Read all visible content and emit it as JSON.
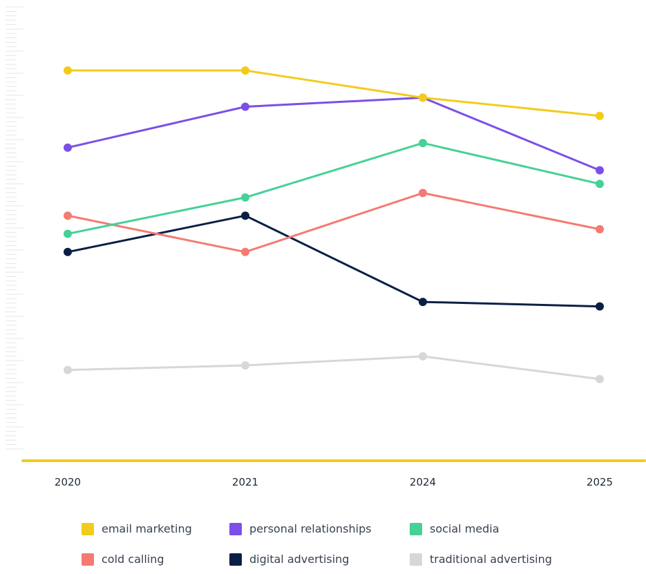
{
  "chart_data": {
    "type": "line",
    "title": "",
    "xlabel": "",
    "ylabel": "",
    "categories": [
      "2020",
      "2021",
      "2024",
      "2025"
    ],
    "ylim": [
      0,
      100
    ],
    "grid": false,
    "legend_position": "bottom",
    "series": [
      {
        "name": "email marketing",
        "color": "#f2cc1c",
        "values": [
          86,
          86,
          80,
          76
        ]
      },
      {
        "name": "personal relationships",
        "color": "#7b4fe8",
        "values": [
          69,
          78,
          80,
          64
        ]
      },
      {
        "name": "social media",
        "color": "#45d197",
        "values": [
          50,
          58,
          70,
          61
        ]
      },
      {
        "name": "cold calling",
        "color": "#f47a72",
        "values": [
          54,
          46,
          59,
          51
        ]
      },
      {
        "name": "digital advertising",
        "color": "#0b1f45",
        "values": [
          46,
          54,
          35,
          34
        ]
      },
      {
        "name": "traditional advertising",
        "color": "#d5d7da",
        "values": [
          20,
          21,
          23,
          18
        ]
      }
    ]
  }
}
